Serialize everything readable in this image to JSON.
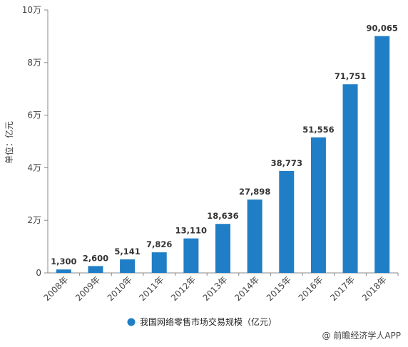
{
  "chart_data": {
    "type": "bar",
    "categories": [
      "2008年",
      "2009年",
      "2010年",
      "2011年",
      "2012年",
      "2013年",
      "2014年",
      "2015年",
      "2016年",
      "2017年",
      "2018年"
    ],
    "series": [
      {
        "name": "我国网络零售市场交易规模（亿元）",
        "values": [
          1300,
          2600,
          5141,
          7826,
          13110,
          18636,
          27898,
          38773,
          51556,
          71751,
          90065
        ],
        "labels": [
          "1,300",
          "2,600",
          "5,141",
          "7,826",
          "13,110",
          "18,636",
          "27,898",
          "38,773",
          "51,556",
          "71,751",
          "90,065"
        ],
        "color": "#1f7ec6"
      }
    ],
    "ylabel": "单位：亿元",
    "ylim": [
      0,
      100000
    ],
    "yticks": [
      0,
      20000,
      40000,
      60000,
      80000,
      100000
    ],
    "ytick_labels": [
      "0",
      "2万",
      "4万",
      "6万",
      "8万",
      "10万"
    ],
    "legend_position": "bottom",
    "grid": false
  },
  "credit": "@ 前瞻经济学人APP"
}
